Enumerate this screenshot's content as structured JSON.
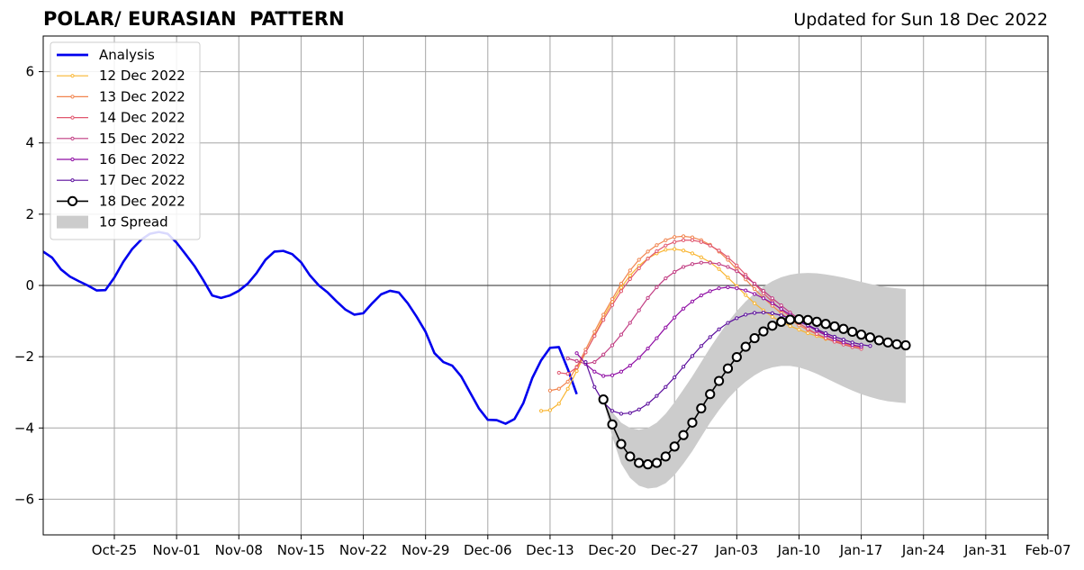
{
  "title": "POLAR/ EURASIAN  PATTERN",
  "updated": "Updated for Sun 18 Dec 2022",
  "chart_data": {
    "type": "line",
    "title": "POLAR/ EURASIAN  PATTERN",
    "xlabel": "",
    "ylabel": "",
    "x_start": "2022-10-17",
    "x_end": "2023-02-07",
    "ylim": [
      -7,
      7
    ],
    "yticks": [
      -6,
      -4,
      -2,
      0,
      2,
      4,
      6
    ],
    "ytick_labels": [
      "−6",
      "−4",
      "−2",
      "0",
      "2",
      "4",
      "6"
    ],
    "xtick_labels": [
      "Oct-25",
      "Nov-01",
      "Nov-08",
      "Nov-15",
      "Nov-22",
      "Nov-29",
      "Dec-06",
      "Dec-13",
      "Dec-20",
      "Dec-27",
      "Jan-03",
      "Jan-10",
      "Jan-17",
      "Jan-24",
      "Jan-31",
      "Feb-07"
    ],
    "xtick_dates": [
      "2022-10-25",
      "2022-11-01",
      "2022-11-08",
      "2022-11-15",
      "2022-11-22",
      "2022-11-29",
      "2022-12-06",
      "2022-12-13",
      "2022-12-20",
      "2022-12-27",
      "2023-01-03",
      "2023-01-10",
      "2023-01-17",
      "2023-01-24",
      "2023-01-31",
      "2023-02-07"
    ],
    "grid": true,
    "zero_line": true,
    "legend_position": "top-left",
    "legend": [
      "Analysis",
      "12 Dec 2022",
      "13 Dec 2022",
      "14 Dec 2022",
      "15 Dec 2022",
      "16 Dec 2022",
      "17 Dec 2022",
      "18 Dec 2022",
      "1σ Spread"
    ],
    "series": [
      {
        "name": "Analysis",
        "color": "#0000ee",
        "start": "2022-10-17",
        "values": [
          0.95,
          0.78,
          0.45,
          0.25,
          0.12,
          0.0,
          -0.14,
          -0.13,
          0.22,
          0.66,
          1.02,
          1.28,
          1.45,
          1.5,
          1.45,
          1.2,
          0.88,
          0.55,
          0.15,
          -0.28,
          -0.35,
          -0.28,
          -0.15,
          0.05,
          0.35,
          0.72,
          0.95,
          0.97,
          0.88,
          0.65,
          0.28,
          0.0,
          -0.2,
          -0.45,
          -0.68,
          -0.82,
          -0.78,
          -0.5,
          -0.25,
          -0.15,
          -0.2,
          -0.5,
          -0.88,
          -1.3,
          -1.9,
          -2.15,
          -2.25,
          -2.55,
          -3.0,
          -3.45,
          -3.77,
          -3.78,
          -3.88,
          -3.75,
          -3.3,
          -2.6,
          -2.1,
          -1.75,
          -1.73,
          -2.35,
          -3.05
        ]
      },
      {
        "name": "12 Dec 2022",
        "color": "#f9b530",
        "start": "2022-12-12",
        "values": [
          -3.52,
          -3.5,
          -3.32,
          -2.9,
          -2.4,
          -1.88,
          -1.4,
          -0.9,
          -0.46,
          -0.06,
          0.28,
          0.55,
          0.76,
          0.9,
          1.0,
          1.02,
          0.98,
          0.9,
          0.79,
          0.65,
          0.46,
          0.22,
          -0.02,
          -0.27,
          -0.5,
          -0.7,
          -0.88,
          -1.02,
          -1.14,
          -1.24,
          -1.34,
          -1.42,
          -1.5,
          -1.56,
          -1.62,
          -1.68,
          -1.72
        ]
      },
      {
        "name": "13 Dec 2022",
        "color": "#f1844e",
        "start": "2022-12-13",
        "values": [
          -2.95,
          -2.9,
          -2.7,
          -2.28,
          -1.8,
          -1.3,
          -0.82,
          -0.38,
          0.05,
          0.42,
          0.72,
          0.95,
          1.13,
          1.27,
          1.36,
          1.38,
          1.35,
          1.27,
          1.14,
          0.95,
          0.72,
          0.45,
          0.17,
          -0.1,
          -0.35,
          -0.57,
          -0.78,
          -0.96,
          -1.12,
          -1.25,
          -1.37,
          -1.47,
          -1.56,
          -1.63,
          -1.7,
          -1.75
        ]
      },
      {
        "name": "14 Dec 2022",
        "color": "#e1566e",
        "start": "2022-12-14",
        "values": [
          -2.45,
          -2.48,
          -2.3,
          -1.88,
          -1.42,
          -0.97,
          -0.55,
          -0.16,
          0.18,
          0.48,
          0.75,
          0.96,
          1.12,
          1.22,
          1.27,
          1.27,
          1.22,
          1.12,
          0.98,
          0.79,
          0.56,
          0.3,
          0.04,
          -0.22,
          -0.46,
          -0.68,
          -0.88,
          -1.06,
          -1.22,
          -1.36,
          -1.48,
          -1.58,
          -1.66,
          -1.73,
          -1.78
        ]
      },
      {
        "name": "15 Dec 2022",
        "color": "#c13b82",
        "start": "2022-12-15",
        "values": [
          -2.05,
          -2.12,
          -2.2,
          -2.15,
          -1.94,
          -1.68,
          -1.38,
          -1.05,
          -0.7,
          -0.35,
          -0.05,
          0.2,
          0.38,
          0.52,
          0.6,
          0.64,
          0.64,
          0.6,
          0.52,
          0.4,
          0.24,
          0.05,
          -0.15,
          -0.36,
          -0.56,
          -0.76,
          -0.94,
          -1.1,
          -1.25,
          -1.38,
          -1.5,
          -1.6,
          -1.67,
          -1.72
        ]
      },
      {
        "name": "16 Dec 2022",
        "color": "#8f0da4",
        "start": "2022-12-16",
        "values": [
          -1.9,
          -2.2,
          -2.42,
          -2.54,
          -2.52,
          -2.42,
          -2.25,
          -2.03,
          -1.77,
          -1.48,
          -1.18,
          -0.9,
          -0.65,
          -0.45,
          -0.28,
          -0.16,
          -0.08,
          -0.05,
          -0.08,
          -0.14,
          -0.24,
          -0.36,
          -0.5,
          -0.66,
          -0.82,
          -0.98,
          -1.13,
          -1.27,
          -1.4,
          -1.51,
          -1.6,
          -1.67,
          -1.72
        ]
      },
      {
        "name": "17 Dec 2022",
        "color": "#5a0c9c",
        "start": "2022-12-17",
        "values": [
          -2.15,
          -2.85,
          -3.28,
          -3.52,
          -3.6,
          -3.58,
          -3.48,
          -3.32,
          -3.1,
          -2.85,
          -2.58,
          -2.28,
          -1.98,
          -1.7,
          -1.45,
          -1.23,
          -1.05,
          -0.92,
          -0.82,
          -0.77,
          -0.76,
          -0.78,
          -0.84,
          -0.92,
          -1.02,
          -1.12,
          -1.23,
          -1.34,
          -1.44,
          -1.52,
          -1.6,
          -1.66,
          -1.7
        ]
      },
      {
        "name": "18 Dec 2022",
        "color": "#000000",
        "start": "2022-12-19",
        "values": [
          -3.2,
          -3.9,
          -4.45,
          -4.8,
          -4.98,
          -5.02,
          -4.98,
          -4.8,
          -4.52,
          -4.2,
          -3.85,
          -3.45,
          -3.05,
          -2.68,
          -2.33,
          -2.01,
          -1.72,
          -1.48,
          -1.29,
          -1.13,
          -1.02,
          -0.96,
          -0.95,
          -0.97,
          -1.02,
          -1.08,
          -1.15,
          -1.22,
          -1.3,
          -1.38,
          -1.46,
          -1.54,
          -1.6,
          -1.65,
          -1.68
        ]
      }
    ],
    "spread": {
      "name": "1σ Spread",
      "color": "#cccccc",
      "start": "2022-12-19",
      "upper": [
        -3.2,
        -3.55,
        -3.85,
        -4.0,
        -4.05,
        -4.0,
        -3.85,
        -3.6,
        -3.28,
        -2.92,
        -2.55,
        -2.15,
        -1.75,
        -1.38,
        -1.03,
        -0.72,
        -0.45,
        -0.22,
        -0.03,
        0.12,
        0.23,
        0.3,
        0.34,
        0.35,
        0.34,
        0.31,
        0.27,
        0.22,
        0.16,
        0.1,
        0.04,
        -0.01,
        -0.05,
        -0.08,
        -0.1
      ],
      "lower": [
        -3.2,
        -4.25,
        -5.0,
        -5.4,
        -5.62,
        -5.7,
        -5.67,
        -5.55,
        -5.32,
        -5.0,
        -4.65,
        -4.25,
        -3.85,
        -3.5,
        -3.18,
        -2.92,
        -2.7,
        -2.52,
        -2.38,
        -2.3,
        -2.26,
        -2.26,
        -2.3,
        -2.38,
        -2.48,
        -2.6,
        -2.72,
        -2.84,
        -2.95,
        -3.05,
        -3.13,
        -3.2,
        -3.25,
        -3.28,
        -3.3
      ]
    }
  }
}
